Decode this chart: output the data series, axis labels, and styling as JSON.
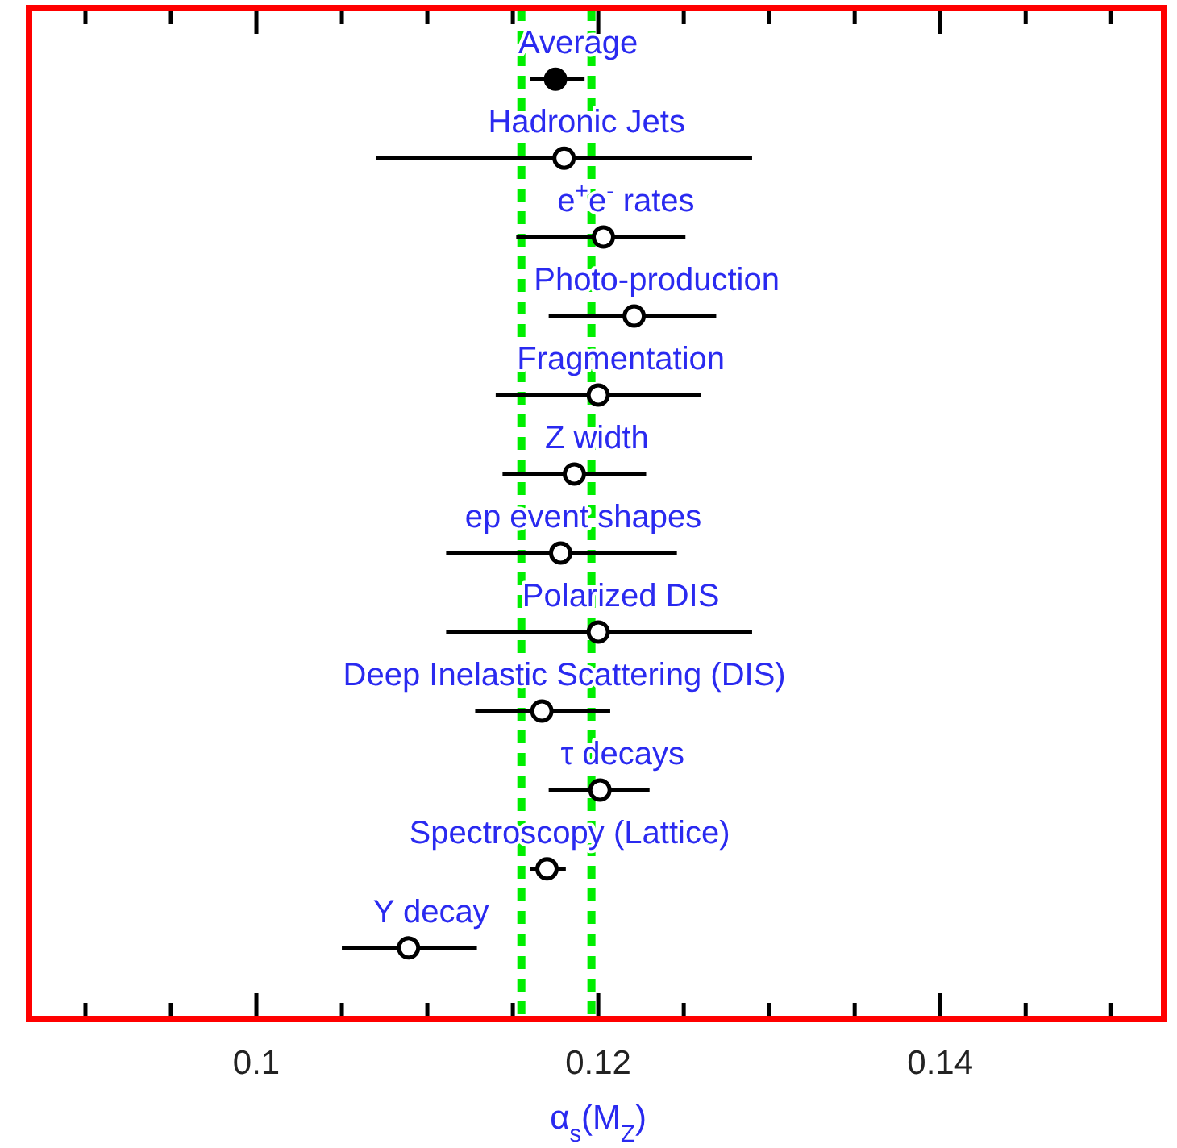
{
  "chart_data": {
    "type": "scatter",
    "orientation": "horizontal",
    "xlabel": "α$_{s}$(M$_{Z}$)",
    "categories": [
      "Average",
      "Hadronic Jets",
      "e$^{+}$e$^{-}$ rates",
      "Photo-production",
      "Fragmentation",
      "Z width",
      "ep event shapes",
      "Polarized DIS",
      "Deep Inelastic Scattering (DIS)",
      "τ decays",
      "Spectroscopy (Lattice)",
      "Υ decay"
    ],
    "values": [
      0.1175,
      0.118,
      0.1203,
      0.1221,
      0.12,
      0.1186,
      0.1178,
      0.12,
      0.1167,
      0.1201,
      0.117,
      0.1089
    ],
    "errors": [
      [
        0.116,
        0.1192
      ],
      [
        0.107,
        0.129
      ],
      [
        0.1152,
        0.1251
      ],
      [
        0.1171,
        0.1269
      ],
      [
        0.114,
        0.126
      ],
      [
        0.1144,
        0.1228
      ],
      [
        0.1111,
        0.1246
      ],
      [
        0.1111,
        0.129
      ],
      [
        0.1128,
        0.1207
      ],
      [
        0.1171,
        0.123
      ],
      [
        0.116,
        0.1181
      ],
      [
        0.105,
        0.1129
      ]
    ],
    "colors": [
      "#000000",
      "#ffffff",
      "#ffffff",
      "#ffffff",
      "#ffffff",
      "#ffffff",
      "#ffffff",
      "#ffffff",
      "#ffffff",
      "#ffffff",
      "#ffffff",
      "#ffffff"
    ],
    "marker": "circle",
    "xlim": [
      0.0867,
      0.1531
    ],
    "xticks": [
      {
        "value": 0.09,
        "label": null
      },
      {
        "value": 0.095,
        "label": null
      },
      0.1,
      {
        "value": 0.105,
        "label": null
      },
      {
        "value": 0.11,
        "label": null
      },
      {
        "value": 0.115,
        "label": null
      },
      0.12,
      {
        "value": 0.125,
        "label": null
      },
      {
        "value": 0.13,
        "label": null
      },
      {
        "value": 0.135,
        "label": null
      },
      0.14,
      {
        "value": 0.145,
        "label": null
      },
      {
        "value": 0.15,
        "label": null
      }
    ],
    "ref_lines": [
      {
        "axis": "x",
        "value": 0.1155,
        "color": "#00ee00",
        "line_style": "dashed"
      },
      {
        "axis": "x",
        "value": 0.1196,
        "color": "#00ee00",
        "line_style": "dashed"
      }
    ],
    "grid": false
  }
}
